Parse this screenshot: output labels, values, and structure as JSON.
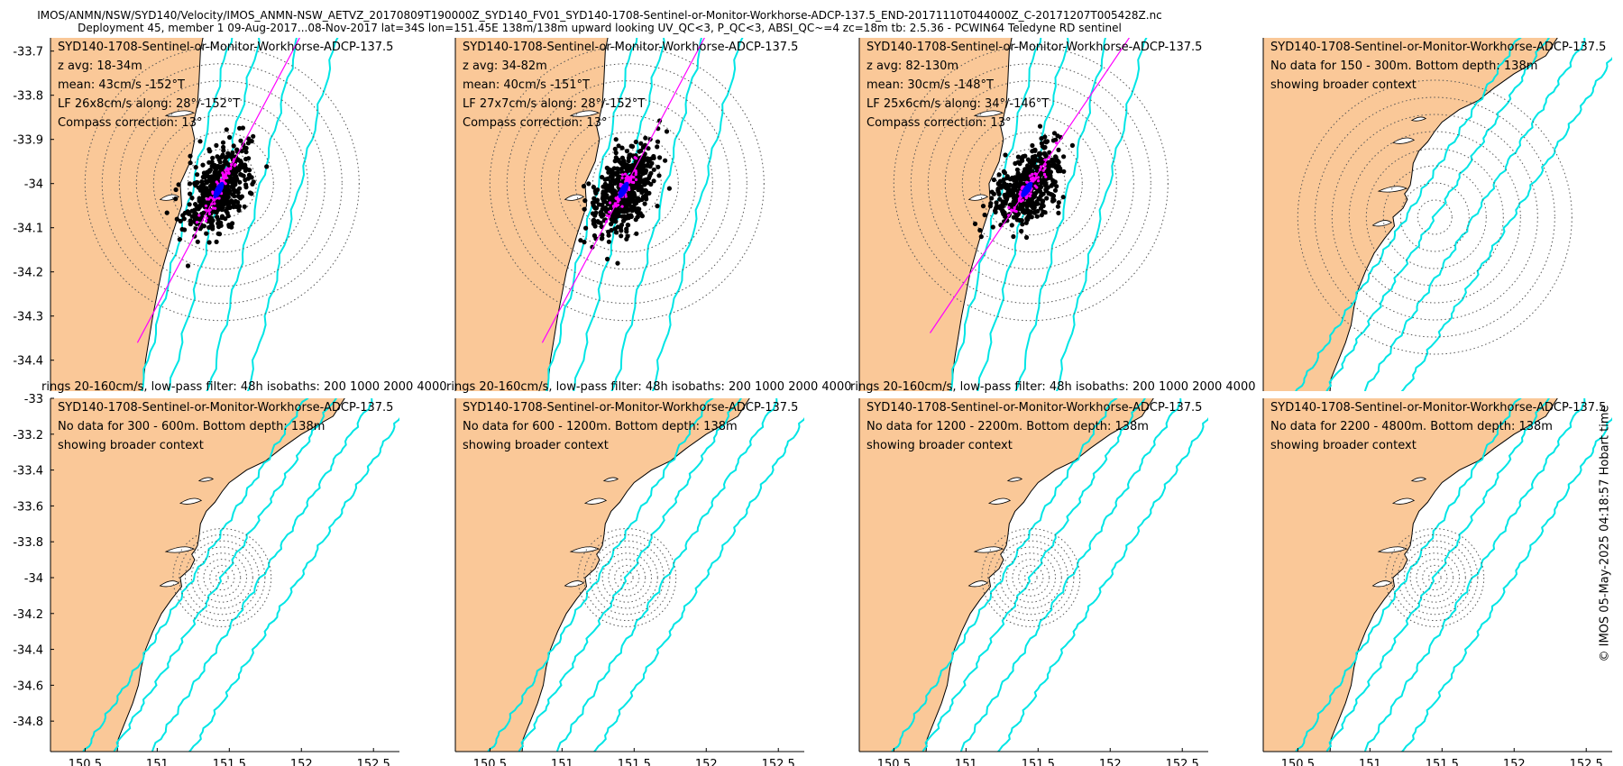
{
  "header": {
    "line1": "IMOS/ANMN/NSW/SYD140/Velocity/IMOS_ANMN-NSW_AETVZ_20170809T190000Z_SYD140_FV01_SYD140-1708-Sentinel-or-Monitor-Workhorse-ADCP-137.5_END-20171110T044000Z_C-20171207T005428Z.nc",
    "line2": "Deployment 45, member 1 09-Aug-2017...08-Nov-2017 lat=34S lon=151.45E 138m/138m upward looking UV_QC<3, P_QC<3, ABSI_QC~=4 zc=18m tb: 2.5.36 - PCWIN64 Teledyne RD sentinel"
  },
  "stamp": "© IMOS 05-May-2025 04:18:57 Hobart time",
  "colors": {
    "land": "#fac898",
    "isobath": "#00e5e5",
    "axis": "#ff00ff",
    "scatter": "#000000",
    "lf": "#ff00ff",
    "mean": "#0000ff"
  },
  "x_axis": {
    "ticks": [
      "150.5",
      "151",
      "151.5",
      "152",
      "152.5"
    ],
    "values": [
      150.5,
      151,
      151.5,
      152,
      152.5
    ]
  },
  "top_y_axis": {
    "ticks": [
      "-33.7",
      "-33.8",
      "-33.9",
      "-34",
      "-34.1",
      "-34.2",
      "-34.3",
      "-34.4"
    ],
    "values": [
      -33.7,
      -33.8,
      -33.9,
      -34,
      -34.1,
      -34.2,
      -34.3,
      -34.4
    ],
    "range": [
      -34.47,
      -33.67
    ]
  },
  "bottom_y_axis": {
    "ticks": [
      "-33",
      "-33.2",
      "-33.4",
      "-33.6",
      "-33.8",
      "-34",
      "-34.2",
      "-34.4",
      "-34.6",
      "-34.8"
    ],
    "values": [
      -33,
      -33.2,
      -33.4,
      -33.6,
      -33.8,
      -34,
      -34.2,
      -34.4,
      -34.6,
      -34.8
    ],
    "range": [
      -34.97,
      -33
    ]
  },
  "chart_data": [
    {
      "type": "scatter",
      "title": "SYD140-1708-Sentinel-or-Monitor-Workhorse-ADCP-137.5",
      "lines": [
        "z avg: 18-34m",
        "mean: 43cm/s -152°T",
        "LF 26x8cm/s along: 28°/-152°T",
        "Compass correction: 13°"
      ],
      "footer": "rings 20-160cm/s, low-pass filter: 48h isobaths: 200 1000 2000 4000",
      "has_data": true,
      "mean_speed_cms": 43,
      "lf_major_cms": 26,
      "lf_minor_cms": 8,
      "along_deg": 28,
      "xlim": [
        150.26,
        152.68
      ],
      "ylim": [
        -34.47,
        -33.67
      ]
    },
    {
      "type": "scatter",
      "title": "SYD140-1708-Sentinel-or-Monitor-Workhorse-ADCP-137.5",
      "lines": [
        "z avg: 34-82m",
        "mean: 40cm/s -151°T",
        "LF 27x7cm/s along: 28°/-152°T",
        "Compass correction: 13°"
      ],
      "footer": "rings 20-160cm/s, low-pass filter: 48h isobaths: 200 1000 2000 4000",
      "has_data": true,
      "mean_speed_cms": 40,
      "lf_major_cms": 27,
      "lf_minor_cms": 7,
      "along_deg": 28,
      "xlim": [
        150.26,
        152.68
      ],
      "ylim": [
        -34.47,
        -33.67
      ]
    },
    {
      "type": "scatter",
      "title": "SYD140-1708-Sentinel-or-Monitor-Workhorse-ADCP-137.5",
      "lines": [
        "z avg: 82-130m",
        "mean: 30cm/s -148°T",
        "LF 25x6cm/s along: 34°/-146°T",
        "Compass correction: 13°"
      ],
      "footer": "rings 20-160cm/s, low-pass filter: 48h isobaths: 200 1000 2000 4000",
      "has_data": true,
      "mean_speed_cms": 30,
      "lf_major_cms": 25,
      "lf_minor_cms": 6,
      "along_deg": 34,
      "xlim": [
        150.26,
        152.68
      ],
      "ylim": [
        -34.47,
        -33.67
      ]
    },
    {
      "type": "other",
      "title": "SYD140-1708-Sentinel-or-Monitor-Workhorse-ADCP-137.5",
      "lines": [
        "No data for 150 - 300m. Bottom depth: 138m",
        "showing broader context"
      ],
      "has_data": false,
      "xlim": [
        150.26,
        152.68
      ],
      "ylim": [
        -34.97,
        -33
      ]
    },
    {
      "type": "other",
      "title": "SYD140-1708-Sentinel-or-Monitor-Workhorse-ADCP-137.5",
      "lines": [
        "No data for 300 - 600m. Bottom depth: 138m",
        "showing broader context"
      ],
      "has_data": false,
      "xlim": [
        150.26,
        152.68
      ],
      "ylim": [
        -34.97,
        -33
      ]
    },
    {
      "type": "other",
      "title": "SYD140-1708-Sentinel-or-Monitor-Workhorse-ADCP-137.5",
      "lines": [
        "No data for 600 - 1200m. Bottom depth: 138m",
        "showing broader context"
      ],
      "has_data": false,
      "xlim": [
        150.26,
        152.68
      ],
      "ylim": [
        -34.97,
        -33
      ]
    },
    {
      "type": "other",
      "title": "SYD140-1708-Sentinel-or-Monitor-Workhorse-ADCP-137.5",
      "lines": [
        "No data for 1200 - 2200m. Bottom depth: 138m",
        "showing broader context"
      ],
      "has_data": false,
      "xlim": [
        150.26,
        152.68
      ],
      "ylim": [
        -34.97,
        -33
      ]
    },
    {
      "type": "other",
      "title": "SYD140-1708-Sentinel-or-Monitor-Workhorse-ADCP-137.5",
      "lines": [
        "No data for 2200 - 4800m. Bottom depth: 138m",
        "showing broader context"
      ],
      "has_data": false,
      "xlim": [
        150.26,
        152.68
      ],
      "ylim": [
        -34.97,
        -33
      ]
    }
  ]
}
